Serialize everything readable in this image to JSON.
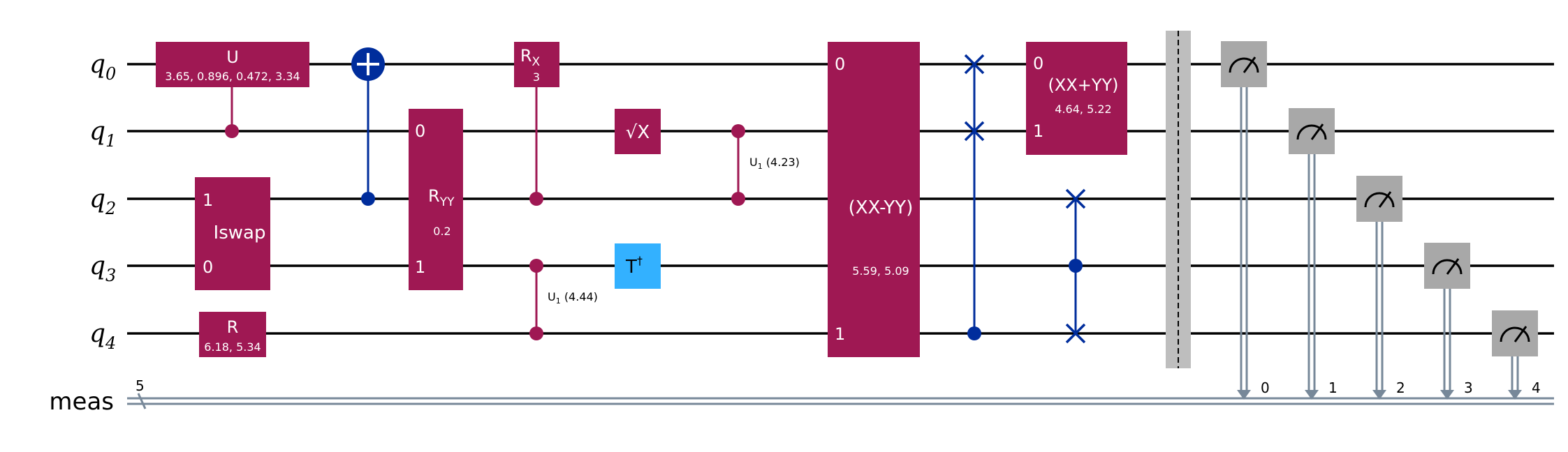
{
  "colors": {
    "magenta": "#9F1853",
    "blue": "#002D9C",
    "light_blue": "#33B1FF",
    "gray": "#A8A8A8",
    "barrier": "#BEBEBE",
    "classical": "#778899"
  },
  "wires": {
    "qubits": [
      {
        "letter": "q",
        "index": "0"
      },
      {
        "letter": "q",
        "index": "1"
      },
      {
        "letter": "q",
        "index": "2"
      },
      {
        "letter": "q",
        "index": "3"
      },
      {
        "letter": "q",
        "index": "4"
      }
    ],
    "classical_label": "meas",
    "classical_size": "5"
  },
  "gates": {
    "u": {
      "label": "U",
      "params": "3.65, 0.896, 0.472, 3.34"
    },
    "iswap": {
      "label": "Iswap",
      "top": "1",
      "bottom": "0"
    },
    "r": {
      "label": "R",
      "params": "6.18, 5.34"
    },
    "ryy": {
      "label": "R",
      "sub": "YY",
      "params": "0.2",
      "top": "0",
      "bottom": "1"
    },
    "rx": {
      "label": "R",
      "sub": "X",
      "params": "3"
    },
    "cu1_a": {
      "label": "U",
      "sub": "1",
      "params": "(4.44)"
    },
    "sx": {
      "label": "√X"
    },
    "tdg": {
      "label": "T",
      "sup": "†"
    },
    "cu1_b": {
      "label": "U",
      "sub": "1",
      "params": "(4.23)"
    },
    "xxmyy": {
      "label": "(XX-YY)",
      "params": "5.59, 5.09",
      "top": "0",
      "bottom": "1"
    },
    "xxpyy": {
      "label": "(XX+YY)",
      "params": "4.64, 5.22",
      "top": "0",
      "bottom": "1"
    }
  },
  "measure_bits": [
    "0",
    "1",
    "2",
    "3",
    "4"
  ]
}
